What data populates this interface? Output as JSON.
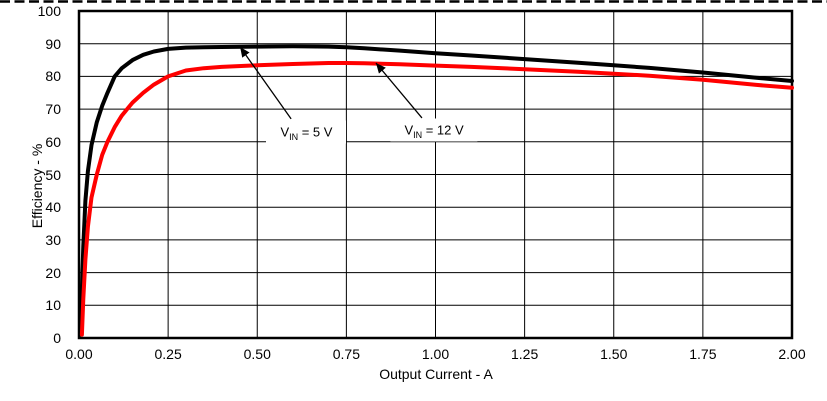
{
  "chart_data": {
    "type": "line",
    "title": "",
    "xlabel": "Output Current - A",
    "ylabel": "Efficiency - %",
    "xlim": [
      0,
      2
    ],
    "ylim": [
      0,
      100
    ],
    "grid": true,
    "legend_position": "inline-annotations",
    "x_ticks": [
      {
        "value": 0,
        "label": "0.00"
      },
      {
        "value": 0.25,
        "label": "0.25"
      },
      {
        "value": 0.5,
        "label": "0.50"
      },
      {
        "value": 0.75,
        "label": "0.75"
      },
      {
        "value": 1.0,
        "label": "1.00"
      },
      {
        "value": 1.25,
        "label": "1.25"
      },
      {
        "value": 1.5,
        "label": "1.50"
      },
      {
        "value": 1.75,
        "label": "1.75"
      },
      {
        "value": 2.0,
        "label": "2.00"
      }
    ],
    "y_ticks": [
      {
        "value": 0,
        "label": "0"
      },
      {
        "value": 10,
        "label": "10"
      },
      {
        "value": 20,
        "label": "20"
      },
      {
        "value": 30,
        "label": "30"
      },
      {
        "value": 40,
        "label": "40"
      },
      {
        "value": 50,
        "label": "50"
      },
      {
        "value": 60,
        "label": "60"
      },
      {
        "value": 70,
        "label": "70"
      },
      {
        "value": 80,
        "label": "80"
      },
      {
        "value": 90,
        "label": "90"
      },
      {
        "value": 100,
        "label": "100"
      }
    ],
    "series": [
      {
        "name": "VIN = 5 V",
        "color": "#000000",
        "points": [
          [
            0.005,
            1
          ],
          [
            0.008,
            15
          ],
          [
            0.012,
            28
          ],
          [
            0.018,
            42
          ],
          [
            0.025,
            51
          ],
          [
            0.035,
            59
          ],
          [
            0.05,
            66
          ],
          [
            0.065,
            71
          ],
          [
            0.08,
            75
          ],
          [
            0.1,
            80
          ],
          [
            0.12,
            82.5
          ],
          [
            0.15,
            85
          ],
          [
            0.18,
            86.6
          ],
          [
            0.21,
            87.6
          ],
          [
            0.25,
            88.4
          ],
          [
            0.3,
            88.8
          ],
          [
            0.35,
            88.9
          ],
          [
            0.4,
            89.0
          ],
          [
            0.5,
            89.1
          ],
          [
            0.6,
            89.2
          ],
          [
            0.7,
            89.1
          ],
          [
            0.75,
            88.9
          ],
          [
            0.8,
            88.6
          ],
          [
            0.9,
            87.9
          ],
          [
            1.0,
            87.1
          ],
          [
            1.1,
            86.4
          ],
          [
            1.25,
            85.3
          ],
          [
            1.4,
            84.2
          ],
          [
            1.5,
            83.4
          ],
          [
            1.6,
            82.6
          ],
          [
            1.75,
            81.2
          ],
          [
            1.9,
            79.6
          ],
          [
            2.0,
            78.6
          ]
        ]
      },
      {
        "name": "VIN = 12 V",
        "color": "#ff0000",
        "points": [
          [
            0.008,
            1
          ],
          [
            0.012,
            12
          ],
          [
            0.018,
            24
          ],
          [
            0.025,
            34
          ],
          [
            0.035,
            43
          ],
          [
            0.05,
            50
          ],
          [
            0.065,
            56
          ],
          [
            0.08,
            60
          ],
          [
            0.1,
            64.5
          ],
          [
            0.12,
            68
          ],
          [
            0.15,
            72
          ],
          [
            0.18,
            75
          ],
          [
            0.21,
            77.5
          ],
          [
            0.25,
            80
          ],
          [
            0.3,
            81.8
          ],
          [
            0.35,
            82.5
          ],
          [
            0.4,
            82.9
          ],
          [
            0.5,
            83.4
          ],
          [
            0.6,
            83.8
          ],
          [
            0.7,
            84.1
          ],
          [
            0.75,
            84.1
          ],
          [
            0.8,
            84.0
          ],
          [
            0.9,
            83.7
          ],
          [
            1.0,
            83.3
          ],
          [
            1.1,
            82.9
          ],
          [
            1.25,
            82.2
          ],
          [
            1.4,
            81.4
          ],
          [
            1.5,
            80.8
          ],
          [
            1.6,
            80.2
          ],
          [
            1.75,
            79.0
          ],
          [
            1.9,
            77.4
          ],
          [
            2.0,
            76.5
          ]
        ]
      }
    ],
    "annotations": [
      {
        "parts": {
          "pre": "V",
          "sub": "IN",
          "post": " = 5 V"
        },
        "label_center": [
          0.638,
          63.1
        ],
        "arrow_from": [
          0.595,
          67.0
        ],
        "arrow_tip": [
          0.452,
          89.0
        ],
        "arrow_color": "#000000"
      },
      {
        "parts": {
          "pre": "V",
          "sub": "IN",
          "post": " = 12 V"
        },
        "label_center": [
          0.996,
          63.5
        ],
        "arrow_from": [
          0.962,
          67.3
        ],
        "arrow_tip": [
          0.833,
          84.1
        ],
        "arrow_color": "#000000"
      }
    ]
  }
}
